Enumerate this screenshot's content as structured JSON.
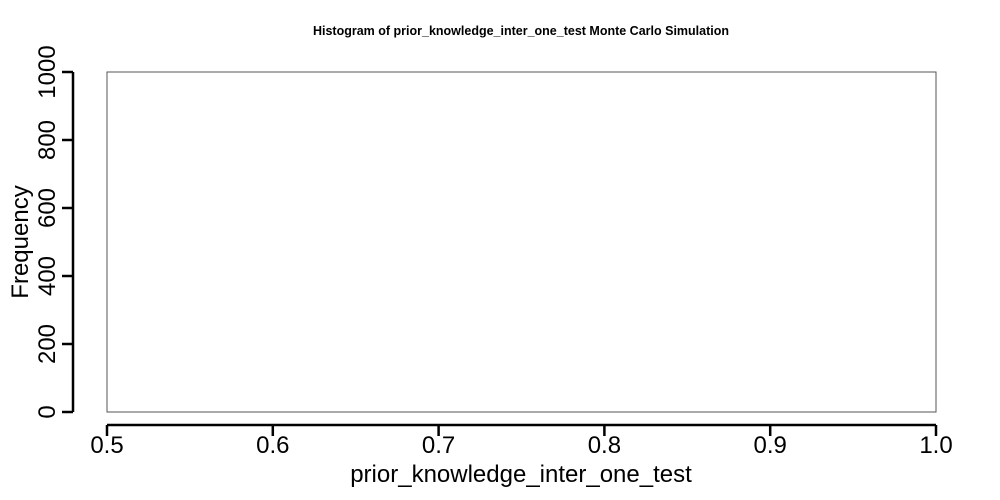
{
  "chart_data": {
    "type": "bar",
    "title": "Histogram of  prior_knowledge_inter_one_test  Monte Carlo Simulation",
    "xlabel": "prior_knowledge_inter_one_test",
    "ylabel": "Frequency",
    "xlim": [
      0.5,
      1.0
    ],
    "ylim": [
      0,
      1000
    ],
    "x_ticks": [
      0.5,
      0.6,
      0.7,
      0.8,
      0.9,
      1.0
    ],
    "x_tick_labels": [
      "0.5",
      "0.6",
      "0.7",
      "0.8",
      "0.9",
      "1.0"
    ],
    "y_ticks": [
      0,
      200,
      400,
      600,
      800,
      1000
    ],
    "y_tick_labels": [
      "0",
      "200",
      "400",
      "600",
      "800",
      "1000"
    ],
    "bins": [],
    "grid": false,
    "legend": "none"
  }
}
